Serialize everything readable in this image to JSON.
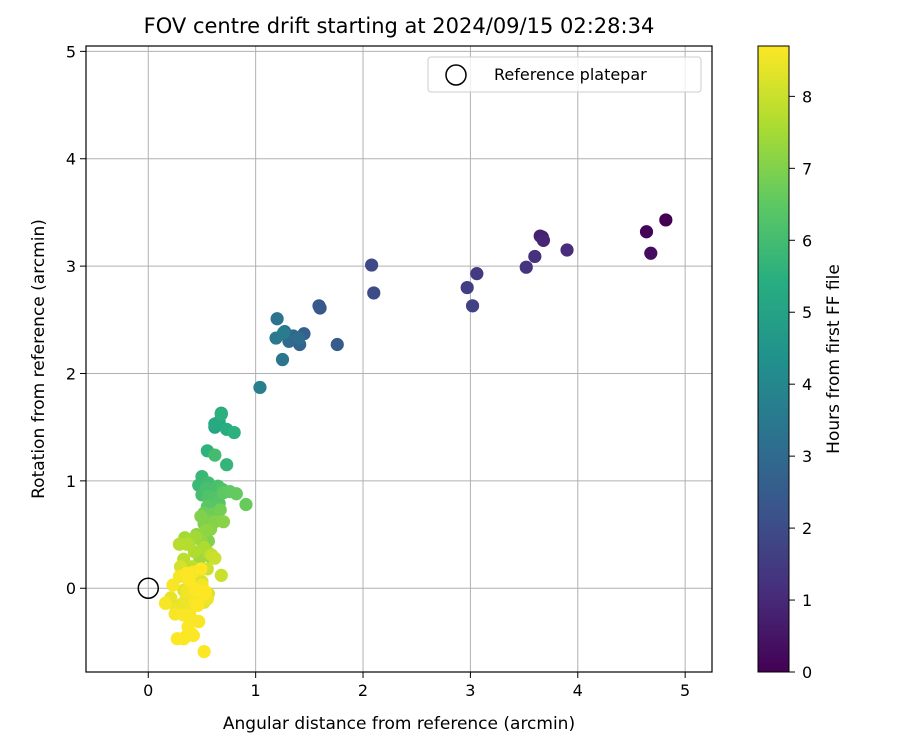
{
  "chart_data": {
    "type": "scatter",
    "title": "FOV centre drift starting at 2024/09/15 02:28:34",
    "xlabel": "Angular distance from reference (arcmin)",
    "ylabel": "Rotation from reference (arcmin)",
    "xlim": [
      -0.58,
      5.25
    ],
    "ylim": [
      -0.78,
      5.05
    ],
    "xticks": [
      "0",
      "1",
      "2",
      "3",
      "4",
      "5"
    ],
    "yticks": [
      "0",
      "1",
      "2",
      "3",
      "4",
      "5"
    ],
    "grid": true,
    "legend": {
      "label": "Reference platepar",
      "placement": "top-right"
    },
    "reference_point": {
      "x": 0,
      "y": 0
    },
    "colorbar": {
      "label": "Hours from first FF file",
      "colormap": "viridis",
      "range": [
        0,
        8.7
      ],
      "ticks": [
        "0",
        "1",
        "2",
        "3",
        "4",
        "5",
        "6",
        "7",
        "8"
      ]
    },
    "series": [
      {
        "x": [
          4.82,
          4.64,
          4.68,
          3.67,
          3.65,
          3.68,
          3.9,
          3.6,
          3.52,
          3.06,
          2.97,
          3.02,
          2.08,
          2.1,
          1.6,
          1.59,
          1.76,
          1.45,
          1.41,
          1.35,
          1.31,
          1.4,
          1.27,
          1.2,
          1.25,
          1.19,
          1.26,
          1.04,
          0.68,
          0.62,
          0.66,
          0.62,
          0.73,
          0.8,
          0.68,
          0.55,
          0.73,
          0.5,
          0.47,
          0.59,
          0.56,
          0.62,
          0.5,
          0.54,
          0.65,
          0.69,
          0.56,
          0.62,
          0.66,
          0.64,
          0.55,
          0.7,
          0.76,
          0.82,
          0.91,
          0.52,
          0.6,
          0.67,
          0.56,
          0.58,
          0.52,
          0.49,
          0.56,
          0.62,
          0.7,
          0.58,
          0.45,
          0.54,
          0.49,
          0.52,
          0.57,
          0.48,
          0.44,
          0.34,
          0.38,
          0.52,
          0.56,
          0.43,
          0.36,
          0.29,
          0.33,
          0.41,
          0.46,
          0.59,
          0.62,
          0.68,
          0.55,
          0.46,
          0.37,
          0.3,
          0.43,
          0.5,
          0.56,
          0.48,
          0.38,
          0.33,
          0.45,
          0.52,
          0.31,
          0.21,
          0.26,
          0.34,
          0.4,
          0.47,
          0.55,
          0.5,
          0.44,
          0.36,
          0.43,
          0.5,
          0.42,
          0.29,
          0.23,
          0.16,
          0.25,
          0.33,
          0.39,
          0.47,
          0.52,
          0.37,
          0.35,
          0.42,
          0.27,
          0.33,
          0.4,
          0.52,
          0.44,
          0.38,
          0.36,
          0.49,
          0.53,
          0.46
        ],
        "y": [
          3.43,
          3.32,
          3.12,
          3.27,
          3.28,
          3.24,
          3.15,
          3.09,
          2.99,
          2.93,
          2.8,
          2.63,
          3.01,
          2.75,
          2.61,
          2.63,
          2.27,
          2.37,
          2.27,
          2.35,
          2.3,
          2.33,
          2.39,
          2.51,
          2.13,
          2.33,
          2.38,
          1.87,
          1.63,
          1.5,
          1.55,
          1.53,
          1.48,
          1.45,
          1.62,
          1.28,
          1.15,
          1.04,
          0.96,
          0.94,
          0.98,
          1.24,
          0.87,
          0.93,
          0.95,
          0.92,
          0.86,
          0.84,
          0.79,
          0.74,
          0.76,
          0.89,
          0.9,
          0.88,
          0.78,
          0.7,
          0.69,
          0.73,
          0.63,
          0.6,
          0.6,
          0.67,
          0.44,
          0.62,
          0.62,
          0.55,
          0.5,
          0.54,
          0.45,
          0.36,
          0.3,
          0.28,
          0.48,
          0.47,
          0.42,
          0.38,
          0.33,
          0.34,
          0.41,
          0.41,
          0.27,
          0.2,
          0.16,
          0.31,
          0.28,
          0.12,
          0.18,
          0.12,
          0.1,
          0.2,
          0.02,
          0.06,
          -0.05,
          -0.09,
          0.07,
          -0.02,
          -0.06,
          -0.13,
          -0.15,
          -0.09,
          -0.2,
          -0.12,
          -0.18,
          -0.1,
          -0.1,
          0.03,
          0.0,
          -0.03,
          -0.12,
          -0.06,
          0.15,
          0.11,
          0.03,
          -0.14,
          -0.24,
          -0.25,
          -0.26,
          -0.31,
          -0.05,
          -0.36,
          -0.45,
          -0.44,
          -0.47,
          -0.47,
          -0.42,
          -0.59,
          -0.01,
          0.08,
          0.14,
          0.18,
          -0.03,
          -0.16
        ],
        "hours": [
          0.0,
          0.1,
          0.3,
          0.6,
          0.8,
          0.9,
          1.1,
          1.2,
          1.3,
          1.5,
          1.6,
          1.7,
          1.9,
          2.0,
          2.3,
          2.4,
          2.5,
          2.6,
          2.8,
          2.9,
          3.0,
          3.1,
          3.2,
          3.3,
          3.4,
          3.5,
          3.6,
          3.8,
          5.0,
          5.1,
          5.2,
          5.3,
          5.4,
          5.5,
          5.5,
          5.6,
          5.7,
          5.8,
          5.85,
          5.9,
          5.95,
          6.0,
          6.05,
          6.1,
          6.15,
          6.2,
          6.25,
          6.3,
          6.35,
          6.4,
          6.45,
          6.5,
          6.55,
          6.6,
          6.65,
          6.7,
          6.75,
          6.8,
          6.85,
          6.9,
          6.95,
          7.0,
          7.0,
          7.05,
          7.1,
          7.1,
          7.15,
          7.2,
          7.25,
          7.3,
          7.35,
          7.4,
          7.45,
          7.5,
          7.55,
          7.6,
          7.6,
          7.65,
          7.7,
          7.75,
          7.8,
          7.85,
          7.9,
          7.95,
          8.0,
          8.0,
          8.05,
          8.1,
          8.1,
          8.15,
          8.2,
          8.2,
          8.25,
          8.25,
          8.3,
          8.3,
          8.35,
          8.35,
          8.4,
          8.4,
          8.45,
          8.45,
          8.5,
          8.5,
          8.5,
          8.55,
          8.55,
          8.55,
          8.6,
          8.6,
          8.6,
          8.6,
          8.62,
          8.62,
          8.63,
          8.64,
          8.65,
          8.65,
          8.66,
          8.66,
          8.67,
          8.67,
          8.68,
          8.68,
          8.69,
          8.69,
          8.7,
          8.7,
          8.7,
          8.7,
          8.7,
          8.7
        ]
      }
    ]
  }
}
